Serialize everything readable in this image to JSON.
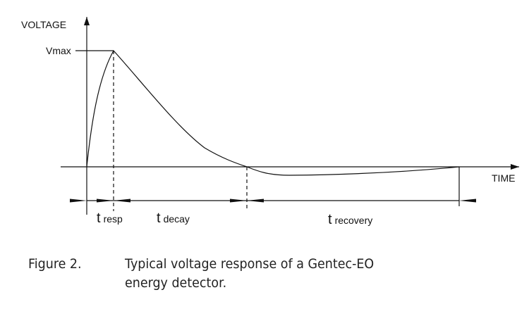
{
  "diagram": {
    "y_axis_label": "VOLTAGE",
    "x_axis_label": "TIME",
    "peak_label": "Vmax",
    "intervals": [
      {
        "symbol": "t",
        "subscript": "resp"
      },
      {
        "symbol": "t",
        "subscript": "decay"
      },
      {
        "symbol": "t",
        "subscript": "recovery"
      }
    ]
  },
  "caption": {
    "number": "Figure 2.",
    "text_line1": "Typical voltage response of a Gentec-EO",
    "text_line2": "energy detector."
  }
}
